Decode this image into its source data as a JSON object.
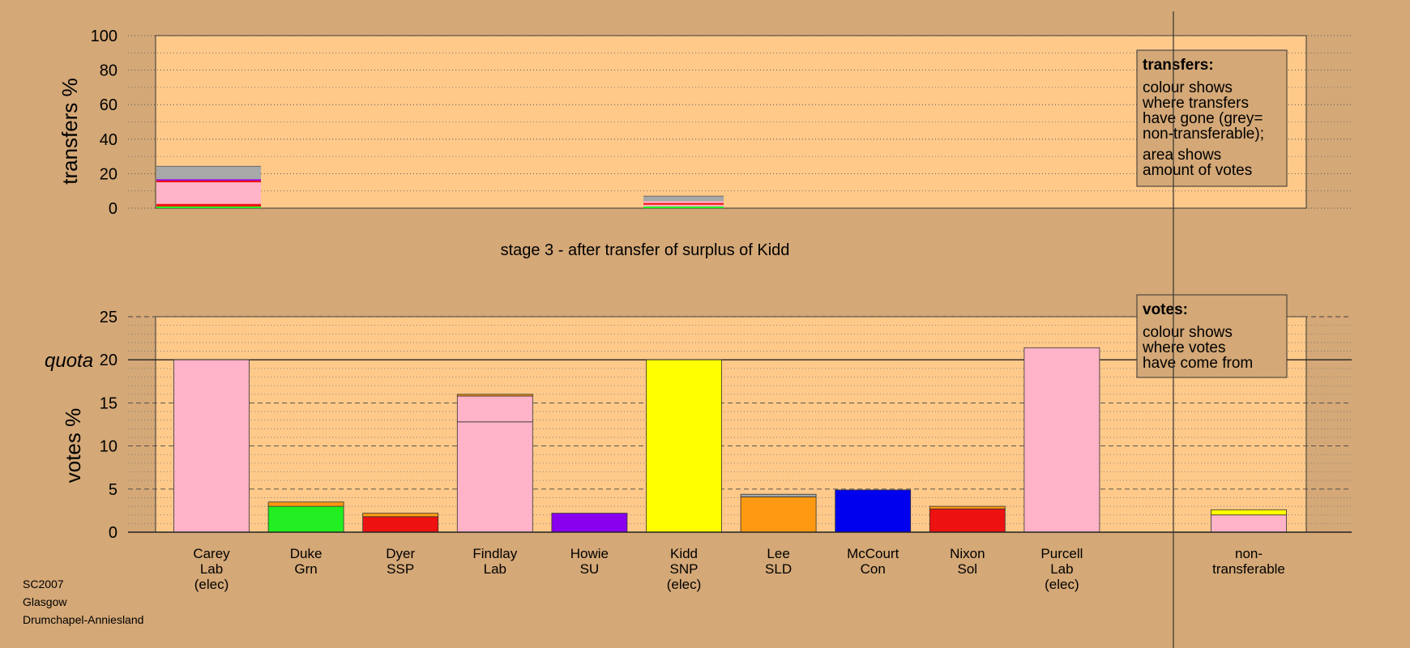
{
  "footer": {
    "line1": "SC2007",
    "line2": "Glasgow",
    "line3": "Drumchapel-Anniesland"
  },
  "colors": {
    "background": "#d4a877",
    "plot": "#ffc98a",
    "grey": "#a8a8a8",
    "lab": "#ffb3c8",
    "grn": "#22ee22",
    "ssp": "#ee1111",
    "su": "#8800ee",
    "snp": "#ffff00",
    "sld": "#ff9911",
    "con": "#0000ee",
    "sol": "#ee1111"
  },
  "chart_data": [
    {
      "type": "bar",
      "stacked": true,
      "ylabel": "transfers %",
      "ylim": [
        0,
        100
      ],
      "yticks": [
        0,
        20,
        40,
        60,
        80,
        100
      ],
      "caption": "stage 3 - after transfer of surplus of Kidd",
      "legend": {
        "position": "top-right",
        "title": "transfers:",
        "lines1": [
          "colour shows",
          "where transfers",
          "have gone (grey=",
          "non-transferable);"
        ],
        "lines2": [
          "area shows",
          "amount of votes"
        ]
      },
      "bars": [
        {
          "source": "Carey",
          "share": 1.1,
          "segments": [
            {
              "party": "grn",
              "value": 1
            },
            {
              "party": "ssp",
              "value": 1.5
            },
            {
              "party": "lab",
              "value": 12.5
            },
            {
              "party": "ssp",
              "value": 1
            },
            {
              "party": "su",
              "value": 0.8
            },
            {
              "party": "grey",
              "value": 7.5
            }
          ]
        },
        {
          "source": "Kidd",
          "share": 0.85,
          "segments": [
            {
              "party": "grn",
              "value": 1
            },
            {
              "party": "lab",
              "value": 1
            },
            {
              "party": "ssp",
              "value": 1
            },
            {
              "party": "lab",
              "value": 1
            },
            {
              "party": "grey",
              "value": 3
            }
          ]
        }
      ]
    },
    {
      "type": "bar",
      "stacked": true,
      "ylabel": "votes %",
      "ylim": [
        0,
        25
      ],
      "yticks": [
        0,
        5,
        10,
        15,
        20,
        25
      ],
      "quota": 20,
      "quota_label": "quota",
      "legend": {
        "position": "top-right",
        "title": "votes:",
        "lines": [
          "colour shows",
          "where votes",
          "have come from"
        ]
      },
      "categories": [
        {
          "lines": [
            "Carey",
            "Lab",
            "(elec)"
          ],
          "segments": [
            {
              "party": "lab",
              "value": 20
            }
          ]
        },
        {
          "lines": [
            "Duke",
            "Grn"
          ],
          "segments": [
            {
              "party": "grn",
              "value": 3
            },
            {
              "party": "sld",
              "value": 0.5
            }
          ]
        },
        {
          "lines": [
            "Dyer",
            "SSP"
          ],
          "segments": [
            {
              "party": "ssp",
              "value": 1.8
            },
            {
              "party": "sld",
              "value": 0.4
            }
          ]
        },
        {
          "lines": [
            "Findlay",
            "Lab"
          ],
          "segments": [
            {
              "party": "lab",
              "value": 12.8
            },
            {
              "party": "lab",
              "value": 3
            },
            {
              "party": "sld",
              "value": 0.2
            }
          ]
        },
        {
          "lines": [
            "Howie",
            "SU"
          ],
          "segments": [
            {
              "party": "su",
              "value": 2.2
            }
          ]
        },
        {
          "lines": [
            "Kidd",
            "SNP",
            "(elec)"
          ],
          "segments": [
            {
              "party": "snp",
              "value": 20
            }
          ]
        },
        {
          "lines": [
            "Lee",
            "SLD"
          ],
          "segments": [
            {
              "party": "sld",
              "value": 4.1
            },
            {
              "party": "grey",
              "value": 0.3
            }
          ]
        },
        {
          "lines": [
            "McCourt",
            "Con"
          ],
          "segments": [
            {
              "party": "con",
              "value": 4.9
            }
          ]
        },
        {
          "lines": [
            "Nixon",
            "Sol"
          ],
          "segments": [
            {
              "party": "sol",
              "value": 2.7
            },
            {
              "party": "sld",
              "value": 0.3
            }
          ]
        },
        {
          "lines": [
            "Purcell",
            "Lab",
            "(elec)"
          ],
          "segments": [
            {
              "party": "lab",
              "value": 21.4
            }
          ]
        },
        {
          "lines": [
            "non-",
            "transferable"
          ],
          "segments": [
            {
              "party": "lab",
              "value": 2
            },
            {
              "party": "snp",
              "value": 0.6
            }
          ]
        }
      ]
    }
  ]
}
